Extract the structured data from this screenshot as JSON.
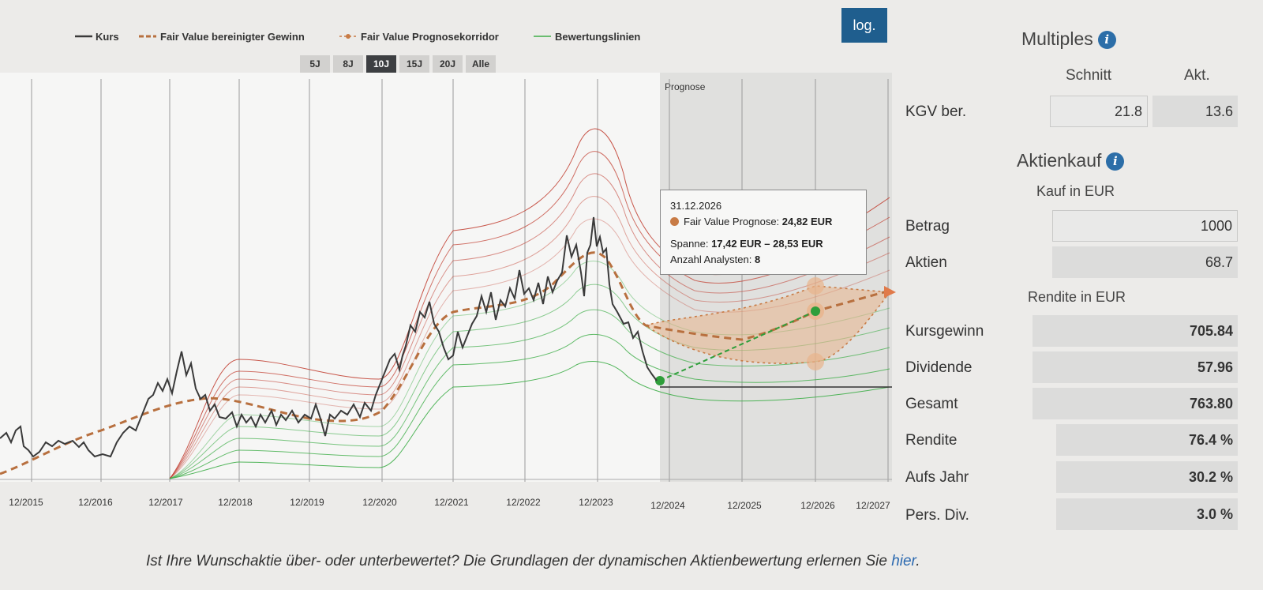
{
  "legend": {
    "kurs": "Kurs",
    "fair_value": "Fair Value bereinigter Gewinn",
    "prognose": "Fair Value Prognosekorridor",
    "bewertung": "Bewertungslinien"
  },
  "range_buttons": [
    "5J",
    "8J",
    "10J",
    "15J",
    "20J",
    "Alle"
  ],
  "active_range": "10J",
  "log_button": "log.",
  "prognose_label": "Prognose",
  "x_ticks": [
    "12/2015",
    "12/2016",
    "12/2017",
    "12/2018",
    "12/2019",
    "12/2020",
    "12/2021",
    "12/2022",
    "12/2023",
    "12/2024",
    "12/2025",
    "12/2026",
    "12/2027"
  ],
  "tooltip": {
    "date": "31.12.2026",
    "fv_label": "Fair Value Prognose:",
    "fv_value": "24,82 EUR",
    "spanne_label": "Spanne:",
    "spanne_value": "17,42 EUR – 28,53 EUR",
    "analysten_label": "Anzahl Analysten:",
    "analysten_value": "8"
  },
  "footer": {
    "text": "Ist Ihre Wunschaktie über- oder unterbewertet? Die Grundlagen der dynamischen Aktienbewertung erlernen Sie ",
    "link": "hier",
    "end": "."
  },
  "multiples": {
    "title": "Multiples",
    "col_schnitt": "Schnitt",
    "col_akt": "Akt.",
    "kgv_label": "KGV ber.",
    "kgv_schnitt": "21.8",
    "kgv_akt": "13.6"
  },
  "aktienkauf": {
    "title": "Aktienkauf",
    "kauf_header": "Kauf in EUR",
    "betrag_label": "Betrag",
    "betrag_value": "1000",
    "aktien_label": "Aktien",
    "aktien_value": "68.7",
    "rendite_header": "Rendite in EUR",
    "kursgewinn_label": "Kursgewinn",
    "kursgewinn_value": "705.84",
    "dividende_label": "Dividende",
    "dividende_value": "57.96",
    "gesamt_label": "Gesamt",
    "gesamt_value": "763.80",
    "rendite_label": "Rendite",
    "rendite_value": "76.4 %",
    "aufs_jahr_label": "Aufs Jahr",
    "aufs_jahr_value": "30.2 %",
    "pers_div_label": "Pers. Div.",
    "pers_div_value": "3.0 %"
  },
  "colors": {
    "kurs": "#3a3a3a",
    "fair_value": "#b8703f",
    "red_lines": "#c0392b",
    "green_lines": "#3fae49",
    "forecast_point": "#2e9e3a",
    "button_dark": "#1f5e8e"
  },
  "chart_data": {
    "type": "line",
    "x_axis": "time (12/2015 – 12/2027)",
    "series": [
      {
        "name": "Kurs",
        "x": [
          "12/2015",
          "12/2016",
          "12/2017",
          "12/2018",
          "12/2019",
          "12/2020",
          "12/2021",
          "12/2022",
          "12/2023",
          "12/2024"
        ],
        "values": [
          12.5,
          11.5,
          18,
          13,
          12,
          17,
          21,
          25,
          33,
          14
        ]
      },
      {
        "name": "Fair Value bereinigter Gewinn",
        "x": [
          "12/2015",
          "12/2016",
          "12/2017",
          "12/2018",
          "12/2019",
          "12/2020",
          "12/2021",
          "12/2022",
          "12/2023",
          "12/2024"
        ],
        "values": [
          8,
          11.5,
          15,
          14,
          12.5,
          14.5,
          21,
          22,
          30,
          20
        ]
      },
      {
        "name": "Fair Value Prognosekorridor",
        "x": [
          "12/2024",
          "12/2025",
          "12/2026",
          "12/2027"
        ],
        "values": [
          20,
          18.5,
          24.82,
          28
        ],
        "range_2026": [
          17.42,
          28.53
        ]
      }
    ],
    "annotations": [
      "Prognose"
    ]
  }
}
